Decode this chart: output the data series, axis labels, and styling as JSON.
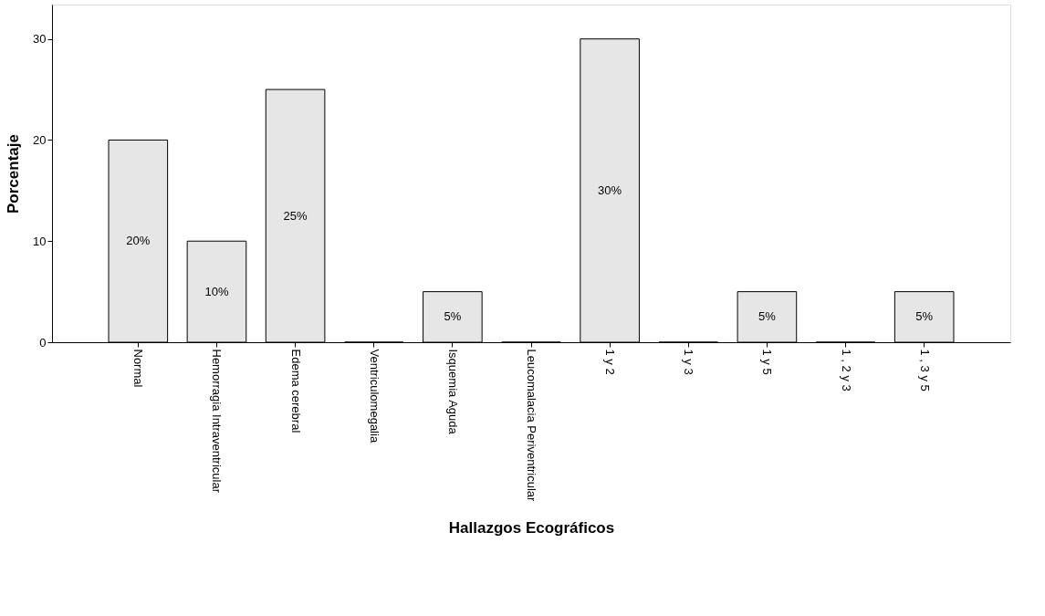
{
  "chart_data": {
    "type": "bar",
    "xlabel": "Hallazgos Ecográficos",
    "ylabel": "Porcentaje",
    "categories": [
      "Normal",
      "Hemorragia Intraventricular",
      "Edema cerebral",
      "Ventriculomegalia",
      "Isquemia Aguda",
      "Leucomalacia  Periventricular",
      "1 y 2",
      "1 y 3",
      "1 y 5",
      "1 , 2 y 3",
      "1 , 3 y 5"
    ],
    "values": [
      20,
      10,
      25,
      0,
      5,
      0,
      30,
      0,
      5,
      0,
      5
    ],
    "value_labels": [
      "20%",
      "10%",
      "25%",
      null,
      "5%",
      null,
      "30%",
      null,
      "5%",
      null,
      "5%"
    ],
    "color": "#e6e6e6",
    "ylim": [
      0,
      33.4
    ],
    "yticks": [
      0,
      10,
      20,
      30
    ],
    "grid": false
  }
}
